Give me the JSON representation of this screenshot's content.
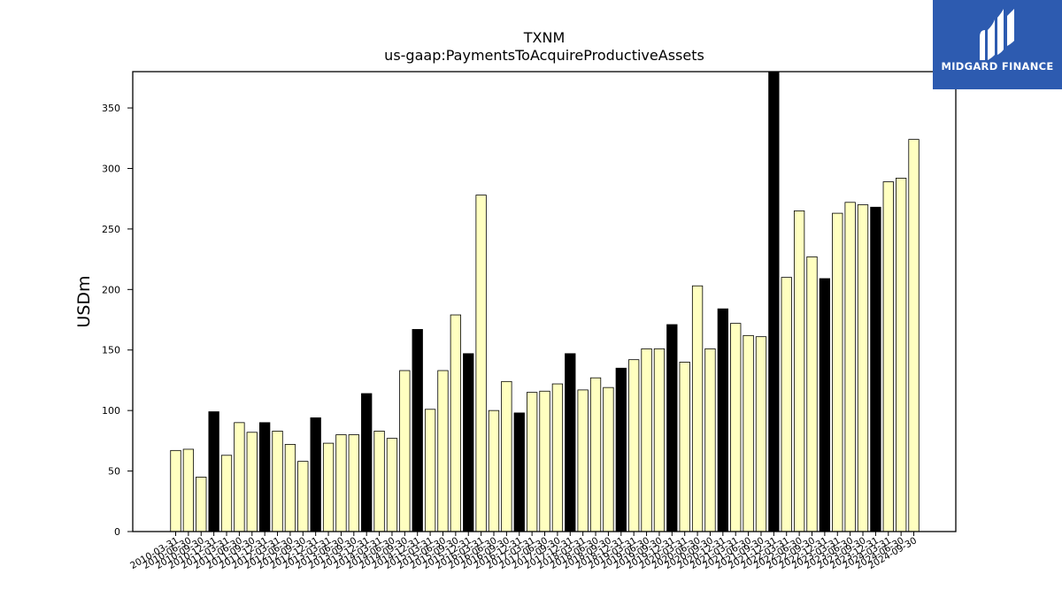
{
  "chart_data": {
    "type": "bar",
    "title": "TXNM",
    "subtitle": "us-gaap:PaymentsToAcquireProductiveAssets",
    "ylabel": "USDm",
    "ylim": [
      0,
      380
    ],
    "yticks": [
      0,
      50,
      100,
      150,
      200,
      250,
      300,
      350
    ],
    "grid": false,
    "bar_colors": {
      "quarter": "#ffffc0",
      "annual": "#000000",
      "edge": "#000000"
    },
    "categories": [
      "2010-03-31",
      "2010-06-30",
      "2010-09-30",
      "2010-12-31",
      "2011-03-31",
      "2011-06-30",
      "2011-09-30",
      "2011-12-31",
      "2012-03-31",
      "2012-06-30",
      "2012-09-30",
      "2012-12-31",
      "2013-03-31",
      "2013-06-30",
      "2013-09-30",
      "2013-12-31",
      "2014-03-31",
      "2014-06-30",
      "2014-09-30",
      "2014-12-31",
      "2015-03-31",
      "2015-06-30",
      "2015-09-30",
      "2015-12-31",
      "2016-03-31",
      "2016-06-30",
      "2016-09-30",
      "2016-12-31",
      "2017-03-31",
      "2017-06-30",
      "2017-09-30",
      "2017-12-31",
      "2018-03-31",
      "2018-06-30",
      "2018-09-30",
      "2018-12-31",
      "2019-03-31",
      "2019-06-30",
      "2019-09-30",
      "2019-12-31",
      "2020-03-31",
      "2020-06-30",
      "2020-09-30",
      "2020-12-31",
      "2021-03-31",
      "2021-06-30",
      "2021-09-30",
      "2021-12-31",
      "2022-03-31",
      "2022-06-30",
      "2022-09-30",
      "2022-12-31",
      "2023-03-31",
      "2023-06-30",
      "2023-09-30",
      "2023-12-31",
      "2024-03-31",
      "2024-06-30",
      "2024-09-30"
    ],
    "values": [
      67,
      68,
      45,
      99,
      63,
      90,
      82,
      90,
      83,
      72,
      58,
      94,
      73,
      80,
      80,
      114,
      83,
      77,
      133,
      167,
      101,
      133,
      179,
      147,
      278,
      100,
      124,
      98,
      115,
      116,
      122,
      147,
      117,
      127,
      119,
      135,
      142,
      151,
      151,
      171,
      140,
      203,
      151,
      184,
      172,
      162,
      161,
      380,
      210,
      265,
      227,
      209,
      263,
      272,
      270,
      268,
      289,
      292,
      324
    ],
    "annual": [
      false,
      false,
      false,
      true,
      false,
      false,
      false,
      true,
      false,
      false,
      false,
      true,
      false,
      false,
      false,
      true,
      false,
      false,
      false,
      true,
      false,
      false,
      false,
      true,
      false,
      false,
      false,
      true,
      false,
      false,
      false,
      true,
      false,
      false,
      false,
      true,
      false,
      false,
      false,
      true,
      false,
      false,
      false,
      true,
      false,
      false,
      false,
      true,
      false,
      false,
      false,
      true,
      false,
      false,
      false,
      true,
      false,
      false,
      false
    ]
  },
  "logo": {
    "text": "MIDGARD FINANCE"
  }
}
